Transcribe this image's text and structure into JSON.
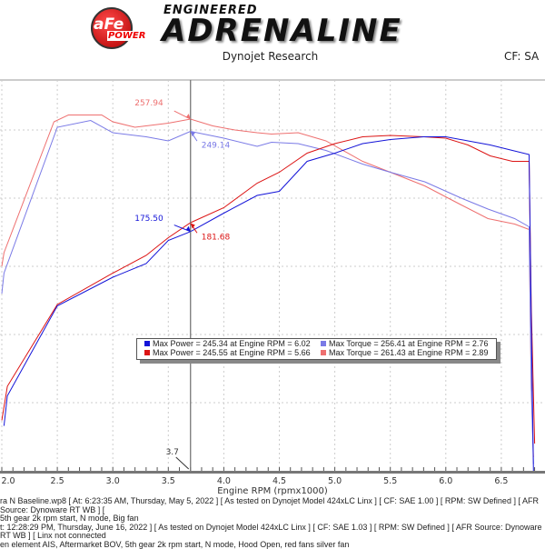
{
  "header": {
    "logo_text": "aFe POWER",
    "tagline_small": "ENGINEERED",
    "tagline_big": "ADRENALINE",
    "subtitle": "Dynojet Research",
    "cf_label": "CF: SA"
  },
  "legend": [
    {
      "text": "Max Power = 245.34 at Engine RPM = 6.02",
      "color": "#1414d8"
    },
    {
      "text": "Max Torque = 256.41 at Engine RPM = 2.76",
      "color": "#7a7ae6"
    },
    {
      "text": "Max Power = 245.55 at Engine RPM = 5.66",
      "color": "#dc1414"
    },
    {
      "text": "Max Torque = 261.43 at Engine RPM = 2.89",
      "color": "#ee7070"
    }
  ],
  "footer": [
    "ra N Baseline.wp8 [ At: 6:23:35 AM, Thursday, May 5, 2022 ] [ As tested on Dynojet Model 424xLC Linx ] [ CF: SAE 1.00 ] [ RPM: SW Defined ] [ AFR Source: Dynoware RT WB ] [",
    "5th gear 2k rpm start, N mode, Big fan",
    "t: 12:28:29 PM, Thursday, June 16, 2022 ] [ As tested on Dynojet Model 424xLC Linx ] [ CF: SAE 1.03 ] [ RPM: SW Defined ] [ AFR Source: Dynoware RT WB ] [ Linx not connected",
    "en element AIS, Aftermarket BOV, 5th gear 2k rpm start, N mode, Hood Open, red fans silver fan"
  ],
  "chart_data": {
    "type": "line",
    "xlabel": "Engine RPM (rpmx1000)",
    "xlim": [
      2.0,
      6.9
    ],
    "ylim": [
      0,
      285
    ],
    "xticks": [
      "2.0",
      "2.5",
      "3.0",
      "3.5",
      "4.0",
      "4.5",
      "5.0",
      "5.5",
      "6.0",
      "6.5"
    ],
    "grid": true,
    "cursor": {
      "x": 3.7,
      "label": "3.7"
    },
    "annotations": [
      {
        "text": "257.94",
        "x": 3.7,
        "y": 257.94,
        "color": "#ee7070"
      },
      {
        "text": "249.14",
        "x": 3.7,
        "y": 249.14,
        "color": "#7a7ae6"
      },
      {
        "text": "175.50",
        "x": 3.7,
        "y": 175.5,
        "color": "#1414d8"
      },
      {
        "text": "181.68",
        "x": 3.7,
        "y": 181.68,
        "color": "#dc1414"
      }
    ],
    "series": [
      {
        "color": "#ee7070",
        "x": [
          2.0,
          2.02,
          2.47,
          2.6,
          2.9,
          3.0,
          3.2,
          3.5,
          3.7,
          3.9,
          4.1,
          4.3,
          4.43,
          4.67,
          4.92,
          5.25,
          5.5,
          5.81,
          6.14,
          6.38,
          6.62,
          6.75,
          6.77,
          6.79
        ],
        "y": [
          150,
          160,
          256,
          261,
          261,
          256,
          252,
          255,
          258,
          253,
          250,
          248,
          247,
          248,
          242,
          227,
          219,
          209,
          195,
          185,
          181,
          177,
          60,
          10
        ]
      },
      {
        "color": "#7a7ae6",
        "x": [
          2.0,
          2.02,
          2.5,
          2.8,
          3.0,
          3.3,
          3.5,
          3.7,
          4.0,
          4.3,
          4.43,
          4.67,
          4.92,
          5.25,
          5.5,
          5.81,
          6.14,
          6.38,
          6.62,
          6.75,
          6.77,
          6.79
        ],
        "y": [
          130,
          145,
          252,
          257,
          248,
          245,
          242,
          249,
          244,
          238,
          241,
          240,
          235,
          225,
          219,
          212,
          200,
          192,
          185,
          179,
          60,
          5
        ]
      },
      {
        "color": "#dc1414",
        "x": [
          2.0,
          2.05,
          2.5,
          3.0,
          3.3,
          3.5,
          3.7,
          4.0,
          4.3,
          4.5,
          4.75,
          5.0,
          5.25,
          5.5,
          5.8,
          6.0,
          6.2,
          6.4,
          6.6,
          6.75,
          6.77,
          6.8
        ],
        "y": [
          37,
          62,
          122,
          145,
          158,
          171,
          182,
          193,
          211,
          219,
          233,
          240,
          245,
          246,
          245,
          244,
          239,
          231,
          227,
          227,
          120,
          20
        ]
      },
      {
        "color": "#1414d8",
        "x": [
          2.02,
          2.05,
          2.5,
          3.0,
          3.3,
          3.5,
          3.7,
          4.0,
          4.3,
          4.5,
          4.75,
          5.0,
          5.25,
          5.5,
          5.8,
          6.0,
          6.2,
          6.4,
          6.6,
          6.75,
          6.77,
          6.79
        ],
        "y": [
          33,
          55,
          121,
          142,
          152,
          169,
          175.5,
          189,
          202,
          205,
          227,
          233,
          240,
          243,
          245,
          245,
          242,
          239,
          235,
          232,
          110,
          0
        ]
      }
    ]
  }
}
